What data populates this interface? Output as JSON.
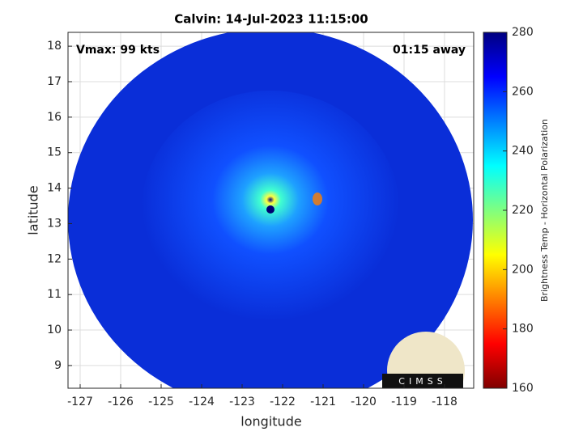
{
  "chart_data": {
    "type": "image",
    "title": "Calvin: 14-Jul-2023 11:15:00",
    "annotations": [
      "Vmax: 99 kts",
      "01:15 away"
    ],
    "xlabel": "longitude",
    "ylabel": "latitude",
    "xlim": [
      -127.3,
      -117.28
    ],
    "xticks": [
      -127,
      -126,
      -125,
      -124,
      -123,
      -122,
      -121,
      -120,
      -119,
      -118
    ],
    "ylim": [
      8.36,
      18.39
    ],
    "yticks": [
      9,
      10,
      11,
      12,
      13,
      14,
      15,
      16,
      17,
      18
    ],
    "grid": true,
    "colorbar": {
      "label": "Brightness Temp - Horizontal Polarization",
      "lim": [
        160,
        280
      ],
      "ticks": [
        160,
        180,
        200,
        220,
        240,
        260,
        280
      ],
      "colormap": "jet"
    }
  },
  "logo": {
    "text": "CIMSS"
  }
}
